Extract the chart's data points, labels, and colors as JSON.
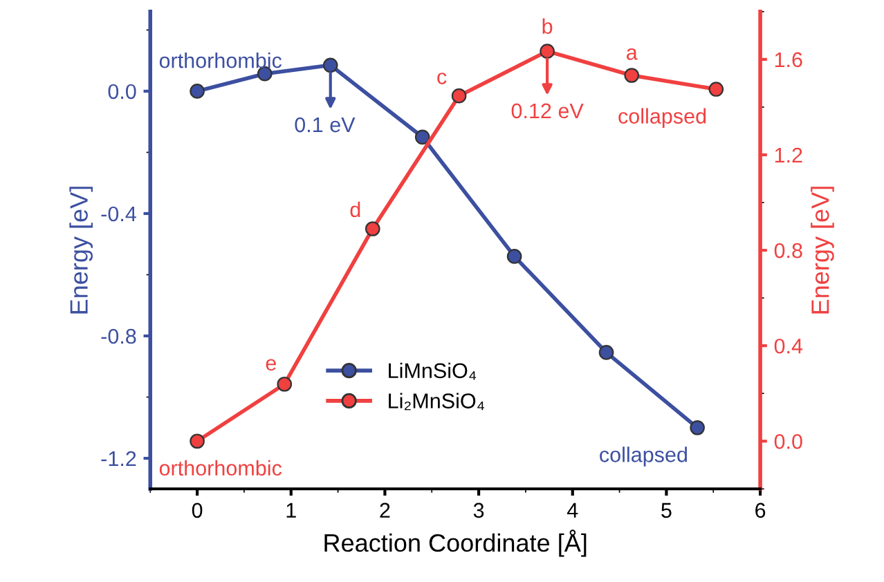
{
  "chart_data": {
    "type": "line",
    "xlabel": "Reaction Coordinate [Å]",
    "ylabel": "Energy [eV]",
    "y2label": "Energy [eV]",
    "xlim": [
      -0.5,
      6
    ],
    "xticks": [
      0,
      1,
      2,
      3,
      4,
      5,
      6
    ],
    "ylim": [
      -1.3,
      0.26
    ],
    "yticks": [
      {
        "value": -1.2,
        "label": "-1.2"
      },
      {
        "value": -0.8,
        "label": "-0.8"
      },
      {
        "value": -0.4,
        "label": "-0.4"
      },
      {
        "value": 0,
        "label": "0.0"
      }
    ],
    "y2lim": [
      -0.2,
      1.8
    ],
    "y2ticks": [
      {
        "value": 0,
        "label": "0.0"
      },
      0.4,
      0.8,
      1.2,
      1.6
    ],
    "marker": "circle",
    "line_style": "solid",
    "grid": false,
    "legend": "bottom",
    "series": [
      {
        "name": "LiMnSiO₄",
        "color": "#3c4fa0",
        "x": [
          0,
          0.72,
          1.42,
          2.4,
          3.38,
          4.36,
          5.33
        ],
        "values": [
          0,
          0.057,
          0.085,
          -0.15,
          -0.54,
          -0.854,
          -1.1
        ]
      },
      {
        "name": "Li₂MnSiO₄",
        "color": "#f04040",
        "axis": "y2",
        "x": [
          0,
          0.93,
          1.87,
          2.79,
          3.73,
          4.63,
          5.53
        ],
        "values": [
          0,
          0.239,
          0.89,
          1.447,
          1.634,
          1.533,
          1.475
        ]
      }
    ],
    "annotations": [
      "orthorhombic",
      "0.1 eV",
      "collapsed",
      "orthorhombic",
      "e",
      "d",
      "c",
      "b",
      "0.12 eV",
      "a",
      "collapsed"
    ]
  }
}
